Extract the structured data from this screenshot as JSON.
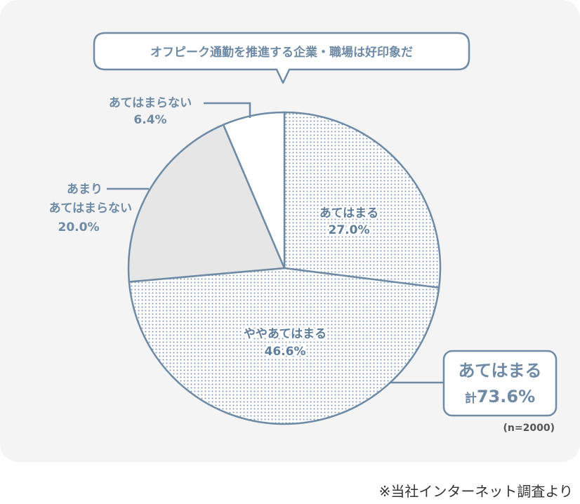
{
  "title": "オフピーク通勤を推進する企業・職場は好印象だ",
  "sample_size": "(n=2000)",
  "source_note": "※当社インターネット調査より",
  "callout": {
    "label": "あてはまる",
    "total_prefix": "計",
    "total_value": "73.6%"
  },
  "colors": {
    "outline": "#6e8aa5",
    "dot": "#7f97af",
    "gray_slice": "#e6e6e6",
    "white_slice": "#ffffff",
    "panel": "#f4f4f4"
  },
  "chart_data": {
    "type": "pie",
    "title": "オフピーク通勤を推進する企業・職場は好印象だ",
    "slices": [
      {
        "label": "あてはまる",
        "value": 27.0,
        "display": "27.0%",
        "fill": "dotted"
      },
      {
        "label": "ややあてはまる",
        "value": 46.6,
        "display": "46.6%",
        "fill": "dotted"
      },
      {
        "label": "あまり あてはまらない",
        "value": 20.0,
        "display": "20.0%",
        "fill": "gray"
      },
      {
        "label": "あてはまらない",
        "value": 6.4,
        "display": "6.4%",
        "fill": "white"
      }
    ],
    "n": 2000
  },
  "labels": {
    "s0_line1": "あてはまる",
    "s0_line2": "27.0%",
    "s1_line1": "ややあてはまる",
    "s1_line2": "46.6%",
    "s2_line1": "あまり",
    "s2_line2": "あてはまらない",
    "s2_line3": "20.0%",
    "s3_line1": "あてはまらない",
    "s3_line2": "6.4%"
  }
}
